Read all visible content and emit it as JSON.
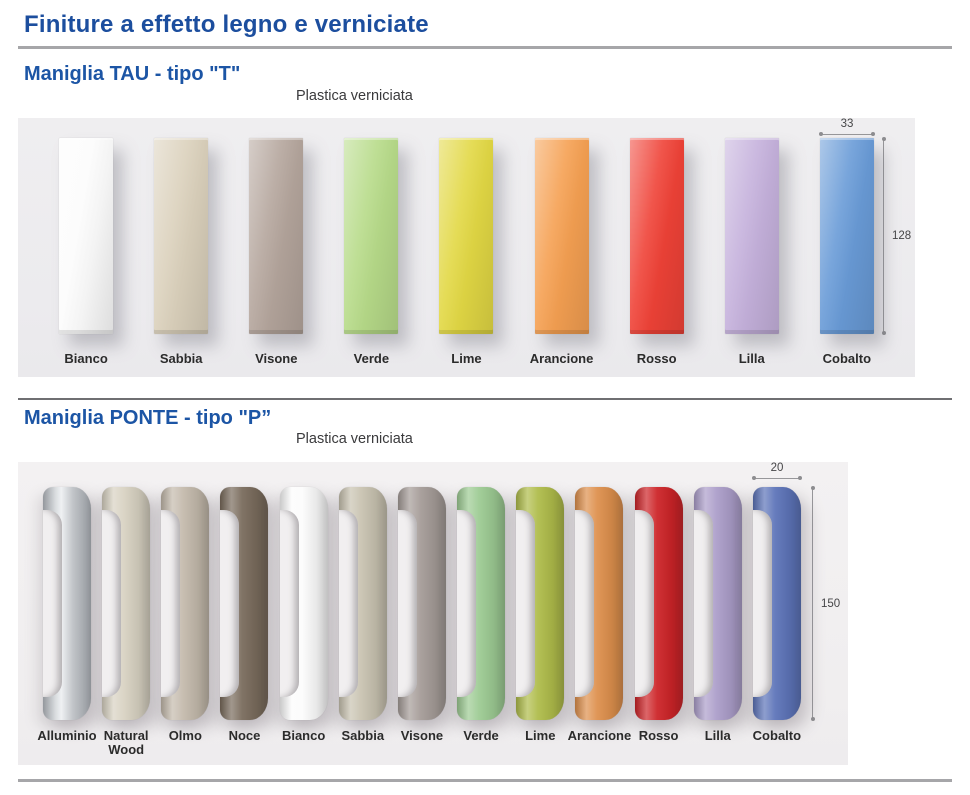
{
  "page": {
    "title": "Finiture a effetto legno e verniciate"
  },
  "sections": [
    {
      "id": "tau",
      "heading": "Maniglia TAU - tipo \"T\"",
      "subtitle": "Plastica verniciata",
      "dimensions": {
        "width_label": "33",
        "height_label": "128"
      },
      "swatches": [
        {
          "label": "Bianco",
          "color": "#FCFCFC"
        },
        {
          "label": "Sabbia",
          "color": "#DBD1BC"
        },
        {
          "label": "Visone",
          "color": "#B4A59C"
        },
        {
          "label": "Verde",
          "color": "#B7DB89"
        },
        {
          "label": "Lime",
          "color": "#E2D844"
        },
        {
          "label": "Arancione",
          "color": "#F5A052"
        },
        {
          "label": "Rosso",
          "color": "#EF4237"
        },
        {
          "label": "Lilla",
          "color": "#C5B1DC"
        },
        {
          "label": "Cobalto",
          "color": "#699BD7"
        }
      ]
    },
    {
      "id": "ponte",
      "heading": "Maniglia PONTE - tipo \"P”",
      "subtitle": "Plastica verniciata",
      "dimensions": {
        "width_label": "20",
        "height_label": "150"
      },
      "swatches": [
        {
          "label": "Alluminio",
          "color": "#C6C8CC",
          "finish": "metal"
        },
        {
          "label": "Natural\nWood",
          "color": "#D8D2C2"
        },
        {
          "label": "Olmo",
          "color": "#C4BAAC"
        },
        {
          "label": "Noce",
          "color": "#796B5C"
        },
        {
          "label": "Bianco",
          "color": "#FCFCFC"
        },
        {
          "label": "Sabbia",
          "color": "#C9C3B1"
        },
        {
          "label": "Visone",
          "color": "#A59C98"
        },
        {
          "label": "Verde",
          "color": "#9DCB93"
        },
        {
          "label": "Lime",
          "color": "#AFBC4A"
        },
        {
          "label": "Arancione",
          "color": "#DE904D"
        },
        {
          "label": "Rosso",
          "color": "#CD2428"
        },
        {
          "label": "Lilla",
          "color": "#AC9ECA"
        },
        {
          "label": "Cobalto",
          "color": "#5D74B9"
        }
      ]
    }
  ]
}
